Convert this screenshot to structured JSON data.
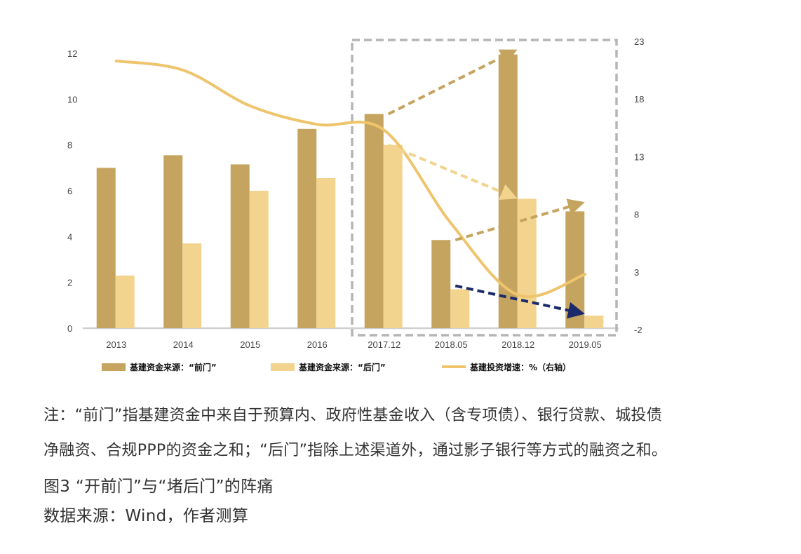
{
  "chart_data": {
    "type": "bar",
    "categories": [
      "2013",
      "2014",
      "2015",
      "2016",
      "2017.12",
      "2018.05",
      "2018.12",
      "2019.05"
    ],
    "series": [
      {
        "name": "基建资金来源：“前门”",
        "type": "bar",
        "axis": "left",
        "color": "#c5a45f",
        "values": [
          7.0,
          7.55,
          7.15,
          8.7,
          9.35,
          3.85,
          11.95,
          5.1
        ]
      },
      {
        "name": "基建资金来源：“后门”",
        "type": "bar",
        "axis": "left",
        "color": "#f2d48f",
        "values": [
          2.3,
          3.7,
          6.0,
          6.55,
          8.0,
          1.7,
          5.65,
          0.55
        ]
      },
      {
        "name": "基建投资增速：%（右轴）",
        "type": "line",
        "axis": "right",
        "color": "#eec46c",
        "values": [
          21.3,
          20.5,
          17.4,
          15.8,
          15.3,
          7.2,
          1.0,
          2.8
        ]
      }
    ],
    "y_left": {
      "min": 0,
      "max": 12,
      "ticks": [
        "0",
        "2",
        "4",
        "6",
        "8",
        "10",
        "12"
      ]
    },
    "y_right": {
      "min": -2,
      "max": 23,
      "ticks": [
        "-2",
        "3",
        "8",
        "13",
        "18",
        "23"
      ]
    },
    "legend_position": "bottom",
    "highlight_box": {
      "from_category": "2017.12",
      "to_category": "2019.05",
      "style": "dashed",
      "color": "#b5b5b5"
    },
    "annotation_arrows": [
      {
        "from": {
          "category": "2017.12",
          "value": 9.35
        },
        "to": {
          "category": "2018.12",
          "value": 12.0
        },
        "color": "#c5a45f"
      },
      {
        "from": {
          "category": "2017.12",
          "value": 8.0
        },
        "to": {
          "category": "2018.12",
          "value": 5.8
        },
        "color": "#f2d48f"
      },
      {
        "from": {
          "category": "2018.05",
          "value": 3.85
        },
        "to": {
          "category": "2019.05",
          "value": 5.4
        },
        "color": "#c5a45f"
      },
      {
        "from": {
          "category": "2018.05",
          "value": 1.85
        },
        "to": {
          "category": "2019.05",
          "value": 0.7
        },
        "color": "#1a2a6b"
      }
    ]
  },
  "legend": [
    {
      "label": "基建资金来源：“前门”",
      "color": "#c5a45f",
      "shape": "rect"
    },
    {
      "label": "基建资金来源：“后门”",
      "color": "#f2d48f",
      "shape": "rect"
    },
    {
      "label": "基建投资增速：%（右轴）",
      "color": "#eec46c",
      "shape": "line"
    }
  ],
  "note_line1": "注：“前门”指基建资金中来自于预算内、政府性基金收入（含专项债）、银行贷款、城投债",
  "note_line2": "净融资、合规PPP的资金之和；“后门”指除上述渠道外，通过影子银行等方式的融资之和。",
  "caption": "图3 “开前门”与“堵后门”的阵痛",
  "source": "数据来源：Wind，作者测算"
}
